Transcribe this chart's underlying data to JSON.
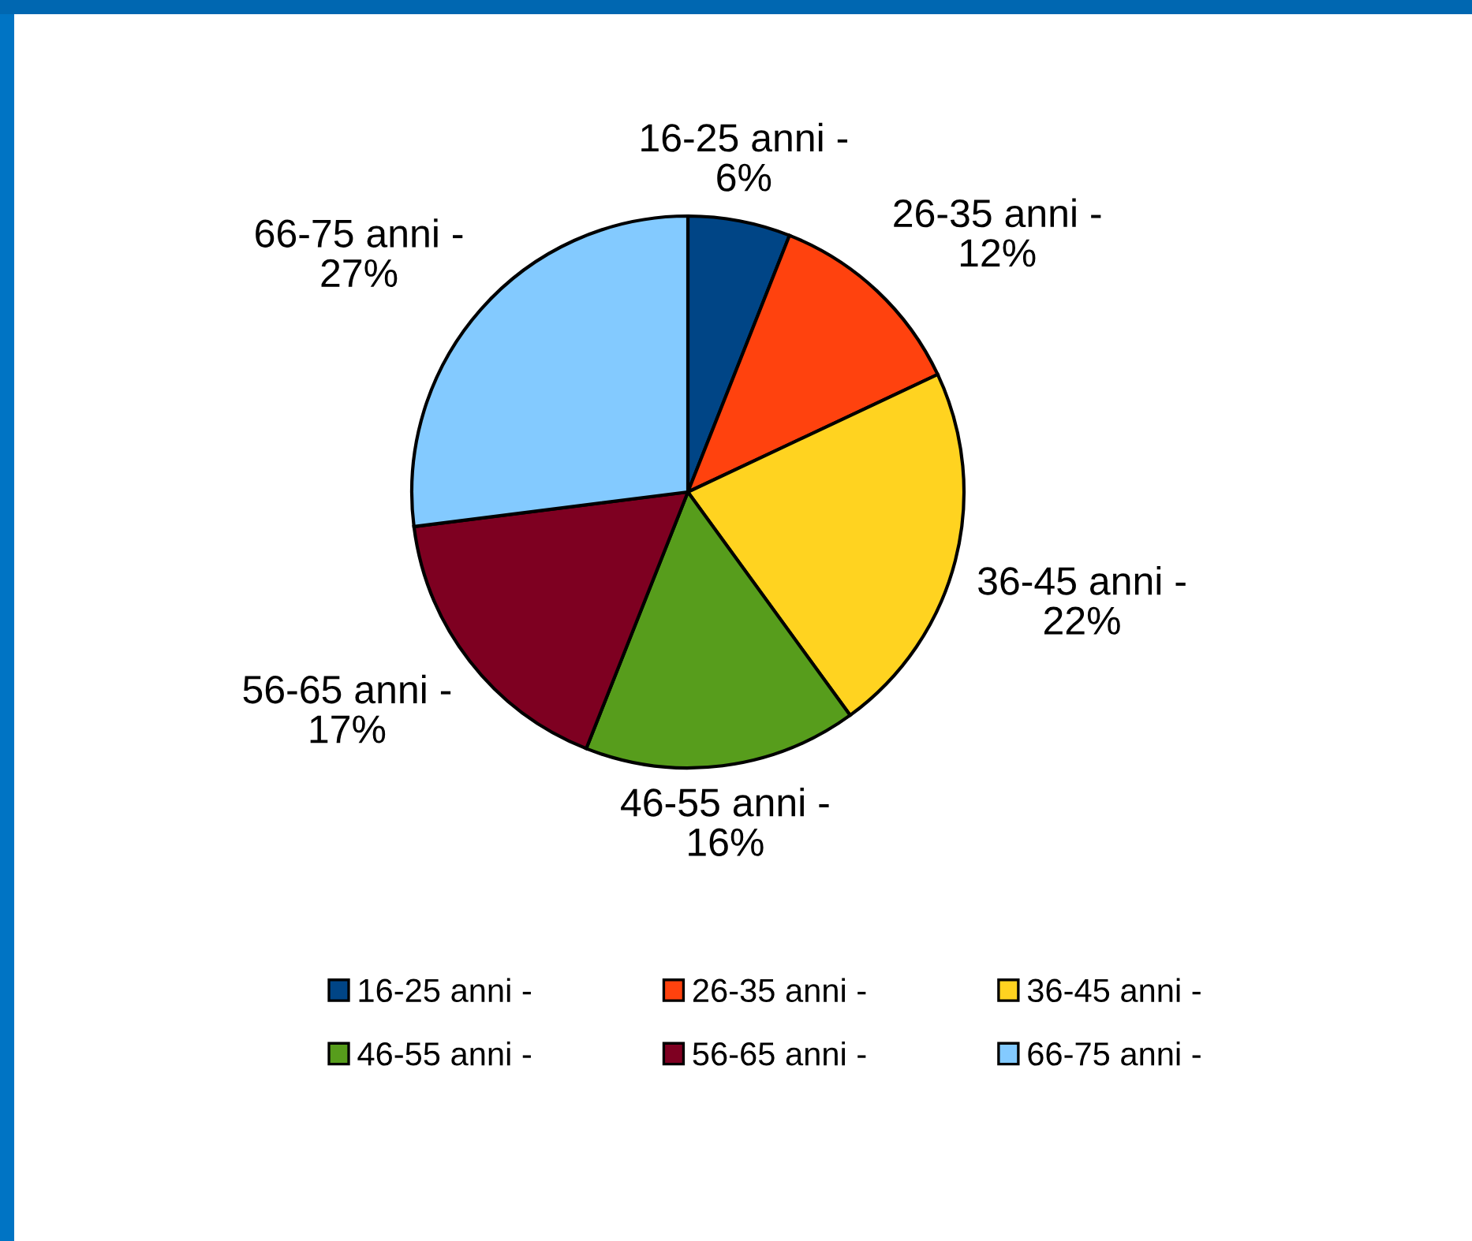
{
  "chart_data": {
    "type": "pie",
    "categories": [
      "16-25 anni -",
      "26-35 anni -",
      "36-45 anni -",
      "46-55 anni -",
      "56-65 anni -",
      "66-75 anni -"
    ],
    "values": [
      6,
      12,
      22,
      16,
      17,
      27
    ],
    "value_labels": [
      "6%",
      "12%",
      "22%",
      "16%",
      "17%",
      "27%"
    ],
    "colors": [
      "#004586",
      "#ff420e",
      "#ffd320",
      "#579d1c",
      "#7e0021",
      "#83caff"
    ],
    "legend": "bottom"
  }
}
